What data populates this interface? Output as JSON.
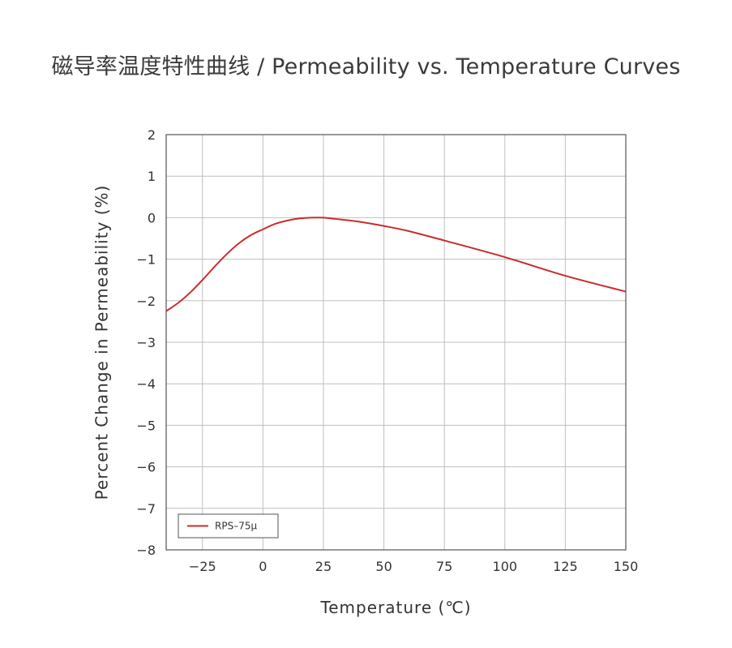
{
  "title": "磁导率温度特性曲线 / Permeability vs. Temperature Curves",
  "chart_data": {
    "type": "line",
    "xlabel": "Temperature (℃)",
    "ylabel": "Percent Change in Permeability (%)",
    "xlim": [
      -40,
      150
    ],
    "ylim": [
      -8,
      2
    ],
    "xticks": [
      -25,
      0,
      25,
      50,
      75,
      100,
      125,
      150
    ],
    "yticks": [
      2,
      1,
      0,
      -1,
      -2,
      -3,
      -4,
      -5,
      -6,
      -7,
      -8
    ],
    "grid": true,
    "legend_position": "bottom-left",
    "series": [
      {
        "name": "RPS–75μ",
        "color": "#cc2b2b",
        "x": [
          -40,
          -35,
          -30,
          -25,
          -20,
          -15,
          -10,
          -5,
          0,
          5,
          10,
          15,
          20,
          25,
          30,
          40,
          50,
          60,
          75,
          100,
          125,
          150
        ],
        "y": [
          -2.25,
          -2.05,
          -1.8,
          -1.5,
          -1.18,
          -0.88,
          -0.62,
          -0.42,
          -0.28,
          -0.15,
          -0.07,
          -0.02,
          0.0,
          0.0,
          -0.03,
          -0.1,
          -0.2,
          -0.32,
          -0.55,
          -0.95,
          -1.4,
          -1.78
        ]
      }
    ]
  }
}
